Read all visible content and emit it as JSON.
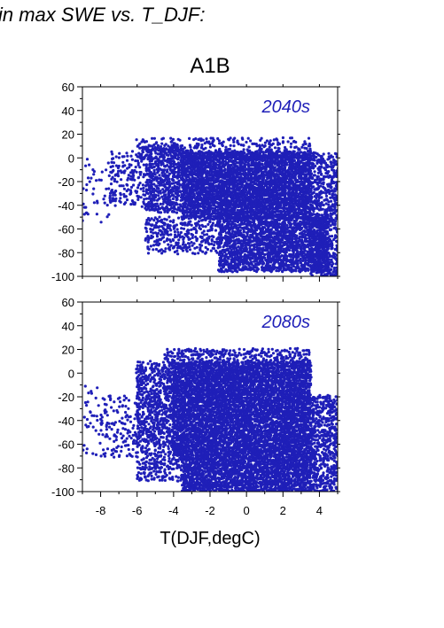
{
  "heading": "in max SWE vs. T_DJF:",
  "chart_data": {
    "type": "scatter",
    "scenario": "A1B",
    "xlabel": "T(DJF,degC)",
    "xlim": [
      -9,
      5
    ],
    "ylim": [
      -100,
      60
    ],
    "x_ticks": [
      -8,
      -6,
      -4,
      -2,
      0,
      2,
      4
    ],
    "y_ticks": [
      -100,
      -80,
      -60,
      -40,
      -20,
      0,
      20,
      40,
      60
    ],
    "grid": false,
    "point_color": "#1f1fb8",
    "panels": [
      {
        "label": "2040s",
        "clusters": [
          {
            "x": [
              -3.5,
              3.5
            ],
            "y": [
              -50,
              5
            ],
            "density": 0.92
          },
          {
            "x": [
              -5.5,
              -3.5
            ],
            "y": [
              -45,
              10
            ],
            "density": 0.55
          },
          {
            "x": [
              -1.5,
              4.5
            ],
            "y": [
              -95,
              -50
            ],
            "density": 0.7
          },
          {
            "x": [
              3.5,
              5.0
            ],
            "y": [
              -100,
              5
            ],
            "density": 0.45
          },
          {
            "x": [
              -7.5,
              -5.5
            ],
            "y": [
              -40,
              5
            ],
            "density": 0.18
          },
          {
            "x": [
              -9.0,
              -7.5
            ],
            "y": [
              -55,
              0
            ],
            "density": 0.06
          },
          {
            "x": [
              -5.5,
              -1.5
            ],
            "y": [
              -80,
              -50
            ],
            "density": 0.3
          },
          {
            "x": [
              -6.0,
              3.5
            ],
            "y": [
              0,
              16
            ],
            "density": 0.22
          }
        ]
      },
      {
        "label": "2080s",
        "clusters": [
          {
            "x": [
              -4.0,
              3.5
            ],
            "y": [
              -70,
              10
            ],
            "density": 0.92
          },
          {
            "x": [
              -6.0,
              -4.0
            ],
            "y": [
              -60,
              10
            ],
            "density": 0.5
          },
          {
            "x": [
              -3.5,
              3.5
            ],
            "y": [
              -100,
              -70
            ],
            "density": 0.85
          },
          {
            "x": [
              3.5,
              5.0
            ],
            "y": [
              -100,
              -20
            ],
            "density": 0.5
          },
          {
            "x": [
              -8.0,
              -6.0
            ],
            "y": [
              -70,
              -20
            ],
            "density": 0.15
          },
          {
            "x": [
              -9.0,
              -8.0
            ],
            "y": [
              -70,
              -10
            ],
            "density": 0.05
          },
          {
            "x": [
              -6.0,
              -3.5
            ],
            "y": [
              -90,
              -60
            ],
            "density": 0.35
          },
          {
            "x": [
              -4.5,
              3.5
            ],
            "y": [
              10,
              20
            ],
            "density": 0.35
          }
        ]
      }
    ]
  }
}
